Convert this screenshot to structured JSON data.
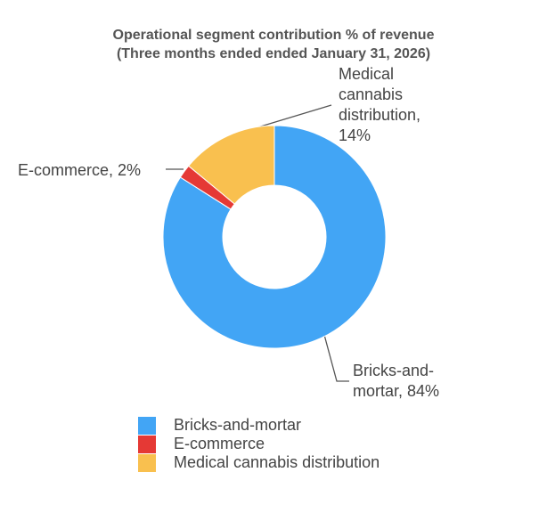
{
  "chart_data": {
    "type": "donut",
    "title": "Operational segment contribution % of revenue",
    "subtitle": "(Three months ended ended January 31, 2026)",
    "categories": [
      "Bricks-and-mortar",
      "E-commerce",
      "Medical cannabis distribution"
    ],
    "values": [
      84,
      2,
      14
    ],
    "value_labels": [
      "Bricks-and-mortar, 84%",
      "E-commerce, 2%",
      "Medical cannabis distribution, 14%"
    ],
    "colors": [
      "#42a5f5",
      "#e53935",
      "#f9c04f"
    ],
    "legend": "bottom"
  }
}
